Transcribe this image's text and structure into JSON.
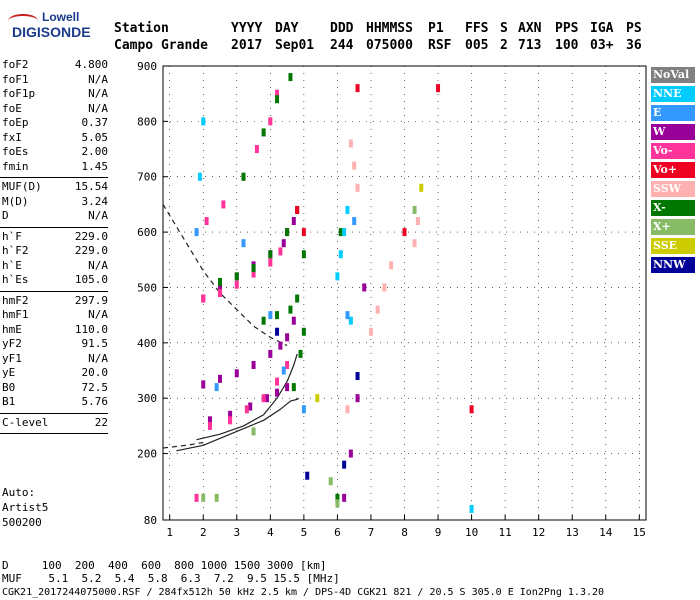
{
  "logo": {
    "line1": "Lowell",
    "line2": "DIGISONDE"
  },
  "header": {
    "row1": [
      "Station",
      "YYYY",
      "DAY",
      "DDD",
      "HHMMSS",
      "P1",
      "FFS",
      "S",
      "AXN",
      "PPS",
      "IGA",
      "PS"
    ],
    "row2": [
      "Campo Grande",
      "2017",
      "Sep01",
      "244",
      "075000",
      "RSF",
      "005",
      "2",
      "713",
      "100",
      "03+",
      "36"
    ]
  },
  "params": {
    "group1": [
      {
        "name": "foF2",
        "value": "4.800"
      },
      {
        "name": "foF1",
        "value": "N/A"
      },
      {
        "name": "foF1p",
        "value": "N/A"
      },
      {
        "name": "foE",
        "value": "N/A"
      },
      {
        "name": "foEp",
        "value": "0.37"
      },
      {
        "name": "fxI",
        "value": "5.05"
      },
      {
        "name": "foEs",
        "value": "2.00"
      },
      {
        "name": "fmin",
        "value": "1.45"
      }
    ],
    "group2": [
      {
        "name": "MUF(D)",
        "value": "15.54"
      },
      {
        "name": "M(D)",
        "value": "3.24"
      },
      {
        "name": "D",
        "value": "N/A"
      }
    ],
    "group3": [
      {
        "name": "h`F",
        "value": "229.0"
      },
      {
        "name": "h`F2",
        "value": "229.0"
      },
      {
        "name": "h`E",
        "value": "N/A"
      },
      {
        "name": "h`Es",
        "value": "105.0"
      }
    ],
    "group4": [
      {
        "name": "hmF2",
        "value": "297.9"
      },
      {
        "name": "hmF1",
        "value": "N/A"
      },
      {
        "name": "hmE",
        "value": "110.0"
      },
      {
        "name": "yF2",
        "value": "91.5"
      },
      {
        "name": "yF1",
        "value": "N/A"
      },
      {
        "name": "yE",
        "value": "20.0"
      },
      {
        "name": "B0",
        "value": "72.5"
      },
      {
        "name": "B1",
        "value": "5.76"
      }
    ],
    "group5": [
      {
        "name": "C-level",
        "value": "22"
      }
    ]
  },
  "auto": {
    "line1": "Auto:",
    "line2": "Artist5",
    "line3": "500200"
  },
  "legend": [
    {
      "label": "NoVal",
      "color": "#808080",
      "text_color": "#ffffff"
    },
    {
      "label": "NNE",
      "color": "#00ccff",
      "text_color": "#ffffff"
    },
    {
      "label": "E",
      "color": "#3399ff",
      "text_color": "#ffffff"
    },
    {
      "label": "W",
      "color": "#990099",
      "text_color": "#ffffff"
    },
    {
      "label": "Vo-",
      "color": "#ff3399",
      "text_color": "#ffffff"
    },
    {
      "label": "Vo+",
      "color": "#ee0022",
      "text_color": "#ffffff"
    },
    {
      "label": "SSW",
      "color": "#ffb0b0",
      "text_color": "#ffffff"
    },
    {
      "label": "X-",
      "color": "#007700",
      "text_color": "#ffffff"
    },
    {
      "label": "X+",
      "color": "#88bb66",
      "text_color": "#ffffff"
    },
    {
      "label": "SSE",
      "color": "#cccc00",
      "text_color": "#ffffff"
    },
    {
      "label": "NNW",
      "color": "#000099",
      "text_color": "#ffffff"
    }
  ],
  "bottom": {
    "d_row": "D     100  200  400  600  800 1000 1500 3000 [km]",
    "muf_row": "MUF    5.1  5.2  5.4  5.8  6.3  7.2  9.5 15.5 [MHz]",
    "footer": "CGK21_2017244075000.RSF / 284fx512h 50 kHz 2.5 km / DPS-4D CGK21 821 / 20.5 S 305.0 E Ion2Png 1.3.20"
  },
  "chart_data": {
    "type": "scatter",
    "title": "",
    "xlabel": "",
    "ylabel": "",
    "xlim": [
      0.8,
      15.2
    ],
    "ylim": [
      80,
      900
    ],
    "x_ticks": [
      1,
      2,
      3,
      4,
      5,
      6,
      7,
      8,
      9,
      10,
      11,
      12,
      13,
      14,
      15
    ],
    "y_ticks": [
      80,
      200,
      300,
      400,
      500,
      600,
      700,
      800,
      900
    ],
    "grid": true,
    "series": [
      {
        "name": "W",
        "color": "#990099",
        "x": [
          2.0,
          2.5,
          3.0,
          3.5,
          4.0,
          4.3,
          4.5,
          4.7,
          2.0,
          2.5,
          3.0,
          3.5,
          4.0,
          4.4,
          4.7,
          2.2,
          2.8,
          3.4,
          3.9,
          4.2,
          4.5,
          6.8,
          6.6,
          6.4,
          6.2
        ],
        "y": [
          325,
          335,
          345,
          360,
          380,
          395,
          410,
          440,
          480,
          500,
          520,
          540,
          560,
          580,
          620,
          260,
          270,
          285,
          300,
          310,
          320,
          500,
          300,
          200,
          120
        ]
      },
      {
        "name": "Vo-",
        "color": "#ff3399",
        "x": [
          2.0,
          2.5,
          3.0,
          3.5,
          4.0,
          4.3,
          4.5,
          2.1,
          2.6,
          3.2,
          3.6,
          4.0,
          4.2,
          2.2,
          2.8,
          3.3,
          3.8,
          4.2,
          4.5,
          1.8
        ],
        "y": [
          480,
          490,
          505,
          525,
          545,
          565,
          600,
          620,
          650,
          700,
          750,
          800,
          850,
          250,
          260,
          280,
          300,
          330,
          360,
          120
        ]
      },
      {
        "name": "X-",
        "color": "#007700",
        "x": [
          2.5,
          3.0,
          3.5,
          4.0,
          4.5,
          4.8,
          5.0,
          3.2,
          3.8,
          4.2,
          4.6,
          3.8,
          4.2,
          4.6,
          4.8,
          5.0,
          4.9,
          4.7,
          6.1,
          6.0
        ],
        "y": [
          510,
          520,
          535,
          560,
          600,
          640,
          560,
          700,
          780,
          840,
          880,
          440,
          450,
          460,
          480,
          420,
          380,
          320,
          600,
          120
        ]
      },
      {
        "name": "X+",
        "color": "#88bb66",
        "x": [
          2.0,
          2.4,
          3.5,
          5.8,
          6.0,
          8.3
        ],
        "y": [
          120,
          120,
          240,
          150,
          110,
          640
        ]
      },
      {
        "name": "NNE",
        "color": "#00ccff",
        "x": [
          1.9,
          2.0,
          6.0,
          6.1,
          6.2,
          6.3,
          6.4,
          10.0
        ],
        "y": [
          700,
          800,
          520,
          560,
          600,
          640,
          440,
          100
        ]
      },
      {
        "name": "E",
        "color": "#3399ff",
        "x": [
          1.8,
          2.4,
          3.2,
          4.0,
          4.4,
          5.0,
          6.3,
          6.5
        ],
        "y": [
          600,
          320,
          580,
          450,
          350,
          280,
          450,
          620
        ]
      },
      {
        "name": "SSW",
        "color": "#ffb0b0",
        "x": [
          6.4,
          6.5,
          6.6,
          7.0,
          7.2,
          7.4,
          7.6,
          8.3,
          8.4,
          6.3
        ],
        "y": [
          760,
          720,
          680,
          420,
          460,
          500,
          540,
          580,
          620,
          280
        ]
      },
      {
        "name": "Vo+",
        "color": "#ee0022",
        "x": [
          4.8,
          5.0,
          6.6,
          8.0,
          9.0,
          10.0
        ],
        "y": [
          640,
          600,
          860,
          600,
          860,
          280
        ]
      },
      {
        "name": "SSE",
        "color": "#cccc00",
        "x": [
          5.4,
          8.5
        ],
        "y": [
          300,
          680
        ]
      },
      {
        "name": "NNW",
        "color": "#000099",
        "x": [
          5.1,
          6.2,
          6.6,
          4.2
        ],
        "y": [
          160,
          180,
          340,
          420
        ]
      }
    ],
    "profile_line": {
      "x": [
        1.2,
        2.0,
        3.0,
        3.8,
        4.3,
        4.6,
        4.8,
        4.85
      ],
      "y": [
        205,
        215,
        240,
        260,
        280,
        295,
        298,
        300
      ]
    },
    "trace_line": {
      "x": [
        1.8,
        2.5,
        3.2,
        3.8,
        4.2,
        4.5,
        4.7,
        4.8
      ],
      "y": [
        225,
        235,
        250,
        270,
        300,
        330,
        360,
        380
      ]
    },
    "dashed_curve": {
      "x": [
        0.8,
        1.5,
        2.0,
        2.5,
        3.0,
        3.5,
        4.0,
        4.5
      ],
      "y": [
        650,
        580,
        530,
        490,
        460,
        430,
        410,
        395
      ]
    },
    "dashed_low": {
      "x": [
        0.8,
        1.5,
        2.0
      ],
      "y": [
        210,
        215,
        220
      ]
    }
  }
}
